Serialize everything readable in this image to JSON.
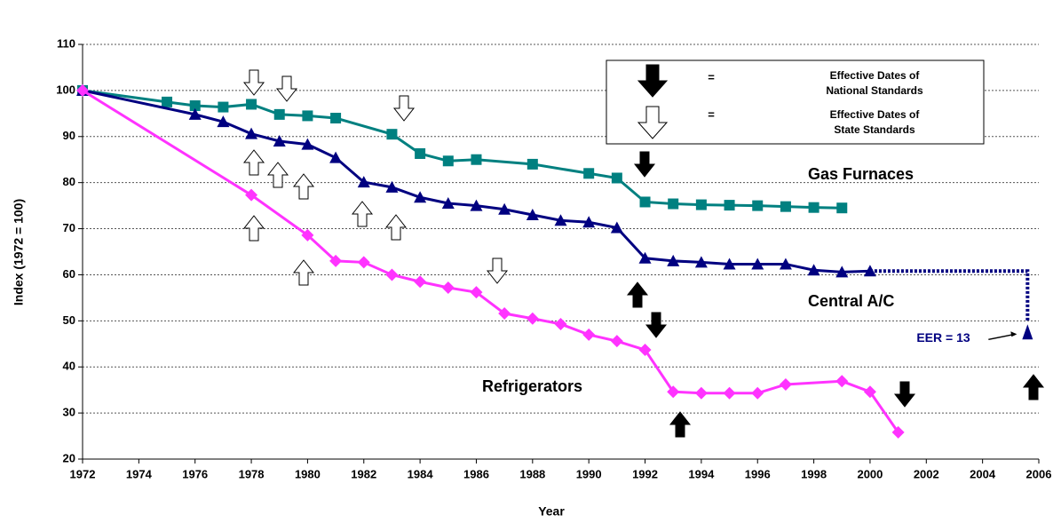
{
  "chart_data": {
    "type": "line",
    "x_label": "Year",
    "y_label": "Index (1972 = 100)",
    "xlim": [
      1972,
      2006
    ],
    "xticks": [
      1972,
      1974,
      1976,
      1978,
      1980,
      1982,
      1984,
      1986,
      1988,
      1990,
      1992,
      1994,
      1996,
      1998,
      2000,
      2002,
      2004,
      2006
    ],
    "ylim": [
      20,
      110
    ],
    "yticks": [
      20,
      30,
      40,
      50,
      60,
      70,
      80,
      90,
      100,
      110
    ],
    "grid": true,
    "series": [
      {
        "name": "Gas Furnaces",
        "color": "#008080",
        "marker": "square",
        "x": [
          1972,
          1975,
          1976,
          1977,
          1978,
          1979,
          1980,
          1981,
          1983,
          1984,
          1985,
          1986,
          1988,
          1990,
          1991,
          1992,
          1993,
          1994,
          1995,
          1996,
          1997,
          1998,
          1999
        ],
        "values": [
          100,
          97.5,
          96.7,
          96.4,
          97,
          94.8,
          94.5,
          94,
          90.5,
          86.3,
          84.7,
          85,
          84,
          82,
          81,
          75.8,
          75.4,
          75.2,
          75.1,
          75,
          74.8,
          74.6,
          74.5
        ]
      },
      {
        "name": "Central A/C",
        "color": "#000080",
        "marker": "triangle",
        "x": [
          1972,
          1976,
          1977,
          1978,
          1979,
          1980,
          1981,
          1982,
          1983,
          1984,
          1985,
          1986,
          1987,
          1988,
          1989,
          1990,
          1991,
          1992,
          1993,
          1994,
          1995,
          1996,
          1997,
          1998,
          1999,
          2000
        ],
        "values": [
          100,
          94.8,
          93.2,
          90.6,
          89,
          88.3,
          85.4,
          80.1,
          79,
          76.8,
          75.5,
          75,
          74.2,
          73,
          71.8,
          71.4,
          70.2,
          63.6,
          63,
          62.7,
          62.3,
          62.3,
          62.3,
          61,
          60.6,
          60.8
        ]
      },
      {
        "name": "Refrigerators",
        "color": "#ff33ff",
        "marker": "diamond",
        "x": [
          1972,
          1978,
          1980,
          1981,
          1982,
          1983,
          1984,
          1985,
          1986,
          1987,
          1988,
          1989,
          1990,
          1991,
          1992,
          1993,
          1994,
          1995,
          1996,
          1997,
          1999,
          2000,
          2001
        ],
        "values": [
          100,
          77.3,
          68.6,
          63,
          62.7,
          60,
          58.5,
          57.2,
          56.2,
          51.6,
          50.5,
          49.3,
          47,
          45.6,
          43.7,
          34.6,
          34.3,
          34.3,
          34.3,
          36.2,
          36.9,
          34.6,
          25.8
        ]
      }
    ],
    "eer_annotation": {
      "text": "EER = 13",
      "x": 2005.6,
      "value": 47.5,
      "color": "#000080"
    },
    "legend": [
      {
        "sign": "=",
        "lines": [
          "Effective Dates of",
          "National Standards"
        ]
      },
      {
        "sign": "=",
        "lines": [
          "Effective Dates of",
          "State Standards"
        ]
      }
    ]
  }
}
